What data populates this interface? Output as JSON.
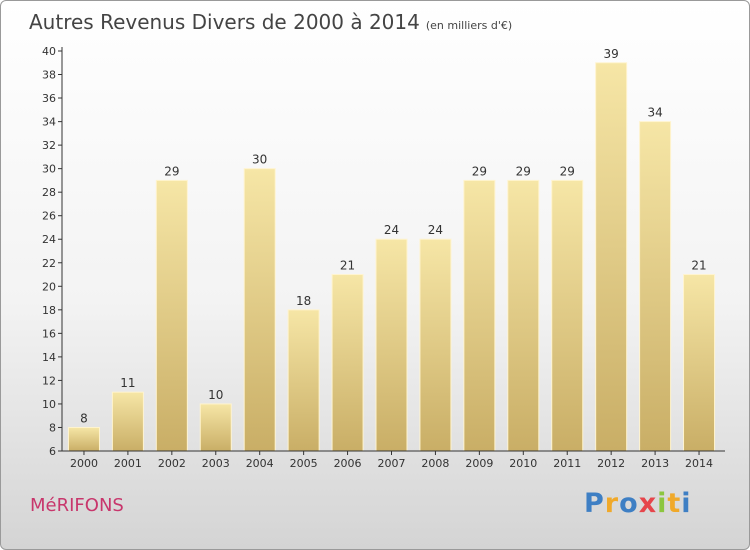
{
  "chart_data": {
    "type": "bar",
    "title": "Autres Revenus Divers de 2000 à 2014",
    "subtitle": "(en milliers d'€)",
    "categories": [
      "2000",
      "2001",
      "2002",
      "2003",
      "2004",
      "2005",
      "2006",
      "2007",
      "2008",
      "2009",
      "2010",
      "2011",
      "2012",
      "2013",
      "2014"
    ],
    "values": [
      8,
      11,
      29,
      10,
      30,
      18,
      21,
      24,
      24,
      29,
      29,
      29,
      39,
      34,
      21
    ],
    "ylim": [
      6,
      40
    ],
    "yticks": [
      6,
      8,
      10,
      12,
      14,
      16,
      18,
      20,
      22,
      24,
      26,
      28,
      30,
      32,
      34,
      36,
      38,
      40
    ],
    "grid": false,
    "legend": "none",
    "bar_color_light": "#f6e6a6",
    "bar_color_dark": "#c9ae66"
  },
  "commune": "MéRIFONS",
  "logo": {
    "letters": [
      "P",
      "r",
      "o",
      "x",
      "i",
      "t",
      "i"
    ],
    "colors": [
      "#3e7fc4",
      "#f0a92a",
      "#3e7fc4",
      "#e6454b",
      "#8cc63f",
      "#f0a92a",
      "#3e7fc4"
    ]
  }
}
